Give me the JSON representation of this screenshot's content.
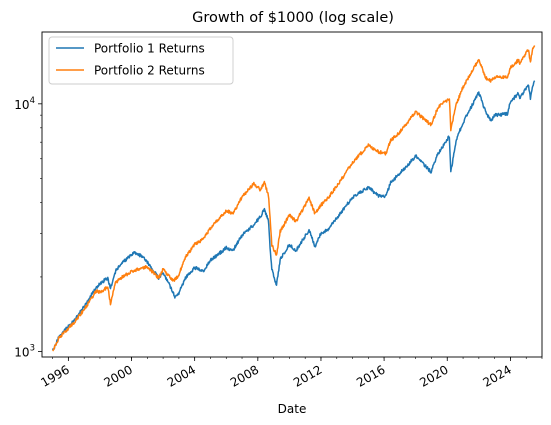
{
  "chart_data": {
    "type": "line",
    "title": "Growth of $1000 (log scale)",
    "xlabel": "Date",
    "ylabel": "",
    "yscale": "log",
    "ylim": [
      950,
      19500
    ],
    "xlim": [
      "1994-05-01",
      "2026-01-01"
    ],
    "x_ticks": [
      "1996",
      "2000",
      "2004",
      "2008",
      "2012",
      "2016",
      "2020",
      "2024"
    ],
    "y_ticks": [
      {
        "value": 1000,
        "base": "10",
        "exp": "3"
      },
      {
        "value": 10000,
        "base": "10",
        "exp": "4"
      }
    ],
    "legend_position": "top-left",
    "grid": false,
    "series": [
      {
        "name": "Portfolio 1 Returns",
        "color": "#1f77b4",
        "points": [
          [
            "1995-01-01",
            1000
          ],
          [
            "1995-06-01",
            1150
          ],
          [
            "1996-01-01",
            1260
          ],
          [
            "1996-06-01",
            1350
          ],
          [
            "1997-01-01",
            1520
          ],
          [
            "1997-06-01",
            1680
          ],
          [
            "1997-10-01",
            1800
          ],
          [
            "1998-01-01",
            1880
          ],
          [
            "1998-07-01",
            1980
          ],
          [
            "1998-09-01",
            1800
          ],
          [
            "1999-01-01",
            2120
          ],
          [
            "1999-06-01",
            2280
          ],
          [
            "2000-01-01",
            2450
          ],
          [
            "2000-03-01",
            2500
          ],
          [
            "2000-09-01",
            2430
          ],
          [
            "2001-01-01",
            2300
          ],
          [
            "2001-09-20",
            1980
          ],
          [
            "2002-01-01",
            2080
          ],
          [
            "2002-07-20",
            1780
          ],
          [
            "2002-10-10",
            1650
          ],
          [
            "2003-01-01",
            1720
          ],
          [
            "2003-06-01",
            1980
          ],
          [
            "2004-01-01",
            2180
          ],
          [
            "2004-08-01",
            2120
          ],
          [
            "2005-01-01",
            2330
          ],
          [
            "2006-01-01",
            2620
          ],
          [
            "2006-06-01",
            2550
          ],
          [
            "2007-01-01",
            2950
          ],
          [
            "2007-10-01",
            3250
          ],
          [
            "2008-03-01",
            3500
          ],
          [
            "2008-06-01",
            3750
          ],
          [
            "2008-09-01",
            3400
          ],
          [
            "2008-10-20",
            2500
          ],
          [
            "2008-11-20",
            2150
          ],
          [
            "2009-03-09",
            1850
          ],
          [
            "2009-06-01",
            2350
          ],
          [
            "2010-01-01",
            2700
          ],
          [
            "2010-06-01",
            2550
          ],
          [
            "2011-04-01",
            3100
          ],
          [
            "2011-08-15",
            2650
          ],
          [
            "2012-01-01",
            3000
          ],
          [
            "2012-06-01",
            3100
          ],
          [
            "2013-01-01",
            3450
          ],
          [
            "2014-01-01",
            4200
          ],
          [
            "2015-01-01",
            4600
          ],
          [
            "2015-08-25",
            4250
          ],
          [
            "2016-02-11",
            4250
          ],
          [
            "2016-06-01",
            4800
          ],
          [
            "2017-01-01",
            5250
          ],
          [
            "2018-01-01",
            6150
          ],
          [
            "2018-12-24",
            5300
          ],
          [
            "2019-06-01",
            6300
          ],
          [
            "2020-02-19",
            7400
          ],
          [
            "2020-03-23",
            5300
          ],
          [
            "2020-08-01",
            7200
          ],
          [
            "2021-01-01",
            8400
          ],
          [
            "2021-12-31",
            11100
          ],
          [
            "2022-06-15",
            9200
          ],
          [
            "2022-10-12",
            8500
          ],
          [
            "2023-01-01",
            9000
          ],
          [
            "2023-10-27",
            9100
          ],
          [
            "2024-01-01",
            10200
          ],
          [
            "2024-07-01",
            11000
          ],
          [
            "2024-08-05",
            10500
          ],
          [
            "2025-02-15",
            12000
          ],
          [
            "2025-04-08",
            10500
          ],
          [
            "2025-06-01",
            11800
          ],
          [
            "2025-07-15",
            12400
          ]
        ]
      },
      {
        "name": "Portfolio 2 Returns",
        "color": "#ff7f0e",
        "points": [
          [
            "1995-01-01",
            1000
          ],
          [
            "1995-06-01",
            1140
          ],
          [
            "1996-01-01",
            1240
          ],
          [
            "1996-06-01",
            1320
          ],
          [
            "1997-01-01",
            1480
          ],
          [
            "1997-06-01",
            1620
          ],
          [
            "1997-10-01",
            1750
          ],
          [
            "1998-01-01",
            1740
          ],
          [
            "1998-07-01",
            1820
          ],
          [
            "1998-09-01",
            1560
          ],
          [
            "1999-01-01",
            1900
          ],
          [
            "1999-06-01",
            2000
          ],
          [
            "2000-01-01",
            2100
          ],
          [
            "2000-06-01",
            2150
          ],
          [
            "2001-01-01",
            2200
          ],
          [
            "2001-09-20",
            1980
          ],
          [
            "2002-01-01",
            2150
          ],
          [
            "2002-07-20",
            1950
          ],
          [
            "2002-10-10",
            1950
          ],
          [
            "2003-01-01",
            2050
          ],
          [
            "2003-06-01",
            2400
          ],
          [
            "2004-01-01",
            2700
          ],
          [
            "2004-08-01",
            2850
          ],
          [
            "2005-01-01",
            3150
          ],
          [
            "2006-01-01",
            3700
          ],
          [
            "2006-06-01",
            3600
          ],
          [
            "2007-01-01",
            4200
          ],
          [
            "2007-10-01",
            4750
          ],
          [
            "2008-03-01",
            4500
          ],
          [
            "2008-06-01",
            4800
          ],
          [
            "2008-09-01",
            4300
          ],
          [
            "2008-10-20",
            3300
          ],
          [
            "2008-11-20",
            2700
          ],
          [
            "2009-03-09",
            2450
          ],
          [
            "2009-06-01",
            3050
          ],
          [
            "2010-01-01",
            3550
          ],
          [
            "2010-06-01",
            3350
          ],
          [
            "2011-04-01",
            4150
          ],
          [
            "2011-08-15",
            3600
          ],
          [
            "2012-01-01",
            3900
          ],
          [
            "2012-06-01",
            4150
          ],
          [
            "2013-01-01",
            4650
          ],
          [
            "2014-01-01",
            5800
          ],
          [
            "2015-01-01",
            6800
          ],
          [
            "2015-08-25",
            6400
          ],
          [
            "2016-02-11",
            6300
          ],
          [
            "2016-06-01",
            7100
          ],
          [
            "2017-01-01",
            7700
          ],
          [
            "2018-01-01",
            9300
          ],
          [
            "2018-12-24",
            8200
          ],
          [
            "2019-06-01",
            9700
          ],
          [
            "2020-02-19",
            10500
          ],
          [
            "2020-03-23",
            7900
          ],
          [
            "2020-08-01",
            10000
          ],
          [
            "2021-01-01",
            11700
          ],
          [
            "2021-12-31",
            15100
          ],
          [
            "2022-06-15",
            12700
          ],
          [
            "2022-10-12",
            12400
          ],
          [
            "2023-01-01",
            12800
          ],
          [
            "2023-10-27",
            12800
          ],
          [
            "2024-01-01",
            14000
          ],
          [
            "2024-07-01",
            15000
          ],
          [
            "2024-08-05",
            14600
          ],
          [
            "2025-02-15",
            16600
          ],
          [
            "2025-04-08",
            14800
          ],
          [
            "2025-06-01",
            16700
          ],
          [
            "2025-07-15",
            17200
          ]
        ]
      }
    ]
  }
}
